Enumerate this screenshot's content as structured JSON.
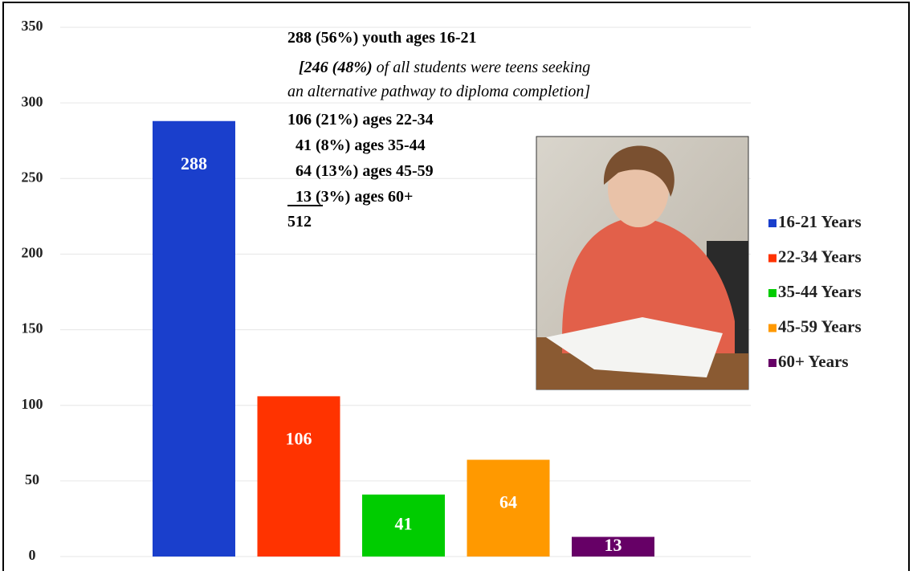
{
  "chart_data": {
    "type": "bar",
    "series": [
      {
        "name": "16-21 Years",
        "color": "#1a3fcc",
        "values": [
          288
        ]
      },
      {
        "name": "22-34 Years",
        "color": "#ff3300",
        "values": [
          106
        ]
      },
      {
        "name": "35-44 Years",
        "color": "#00cc00",
        "values": [
          41
        ]
      },
      {
        "name": "45-59 Years",
        "color": "#ff9900",
        "values": [
          64
        ]
      },
      {
        "name": "60+ Years",
        "color": "#660066",
        "values": [
          13
        ]
      }
    ],
    "ylim": [
      0,
      350
    ],
    "yticks": [
      0,
      50,
      100,
      150,
      200,
      250,
      300,
      350
    ],
    "grid": true,
    "legend": "right",
    "annotations": [
      [
        "288 (56%) youth ages 16-21"
      ],
      [
        "[246 (48%)",
        " of all students were teens seeking"
      ],
      [
        "an alternative pathway to diploma completion]"
      ],
      [
        "106 (21%) ages 22-34"
      ],
      [
        "41 (8%) ages 35-44"
      ],
      [
        "64 (13%) ages 45-59"
      ],
      [
        "13",
        " (3%) ages 60+"
      ],
      [
        "512"
      ]
    ]
  }
}
